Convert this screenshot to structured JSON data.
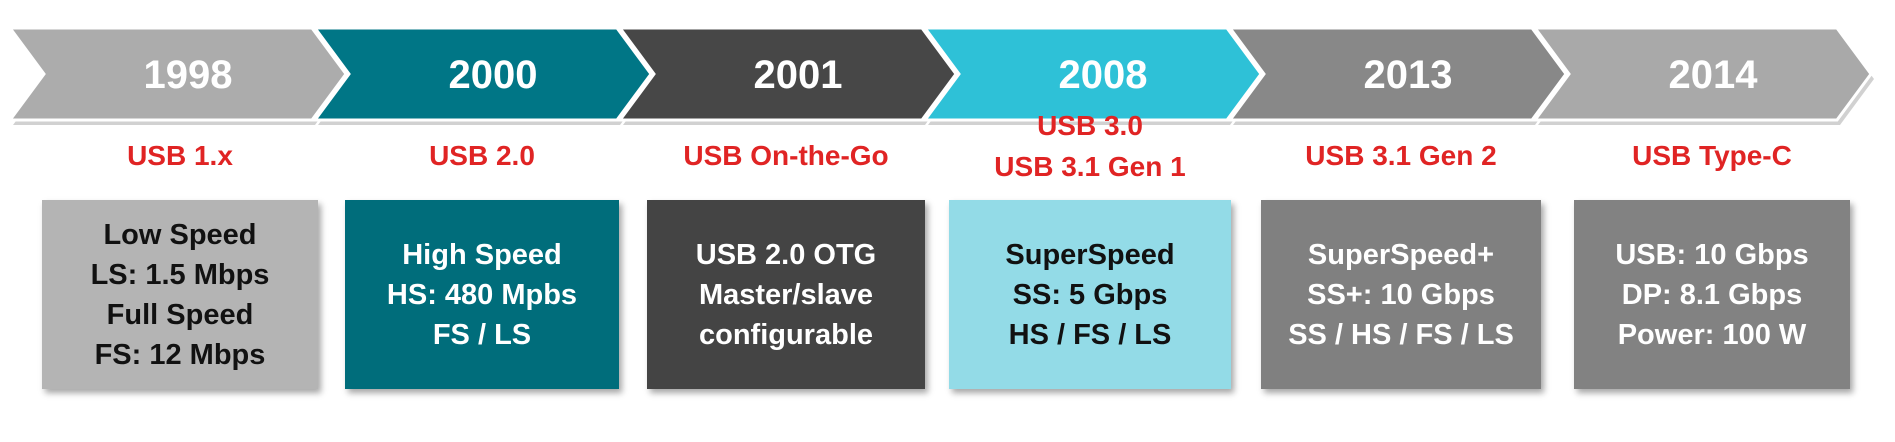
{
  "timeline": [
    {
      "year": "1998",
      "standard": [
        "USB 1.x"
      ],
      "details": [
        "Low Speed",
        "LS: 1.5 Mbps",
        "Full Speed",
        "FS: 12 Mbps"
      ],
      "chevron_color": "#acacac",
      "box_color": "#b4b4b4",
      "text_color": "#111111"
    },
    {
      "year": "2000",
      "standard": [
        "USB 2.0"
      ],
      "details": [
        "High Speed",
        "HS: 480 Mpbs",
        "FS / LS"
      ],
      "chevron_color": "#007686",
      "box_color": "#006d7b",
      "text_color": "#ffffff"
    },
    {
      "year": "2001",
      "standard": [
        "USB On-the-Go"
      ],
      "details": [
        "USB 2.0 OTG",
        "Master/slave",
        "configurable"
      ],
      "chevron_color": "#474747",
      "box_color": "#444444",
      "text_color": "#ffffff"
    },
    {
      "year": "2008",
      "standard": [
        "USB 3.0",
        "USB 3.1 Gen 1"
      ],
      "details": [
        "SuperSpeed",
        "SS: 5 Gbps",
        "HS / FS / LS"
      ],
      "chevron_color": "#2ec1d7",
      "box_color": "#93dbe7",
      "text_color": "#111111"
    },
    {
      "year": "2013",
      "standard": [
        "USB 3.1 Gen 2"
      ],
      "details": [
        "SuperSpeed+",
        "SS+: 10 Gbps",
        "SS / HS / FS / LS"
      ],
      "chevron_color": "#888888",
      "box_color": "#808080",
      "text_color": "#ffffff"
    },
    {
      "year": "2014",
      "standard": [
        "USB Type-C"
      ],
      "details": [
        "USB: 10 Gbps",
        "DP: 8.1 Gbps",
        "Power: 100 W"
      ],
      "chevron_color": "#a9a9a9",
      "box_color": "#828282",
      "text_color": "#ffffff"
    }
  ],
  "label_color": "#e02424"
}
